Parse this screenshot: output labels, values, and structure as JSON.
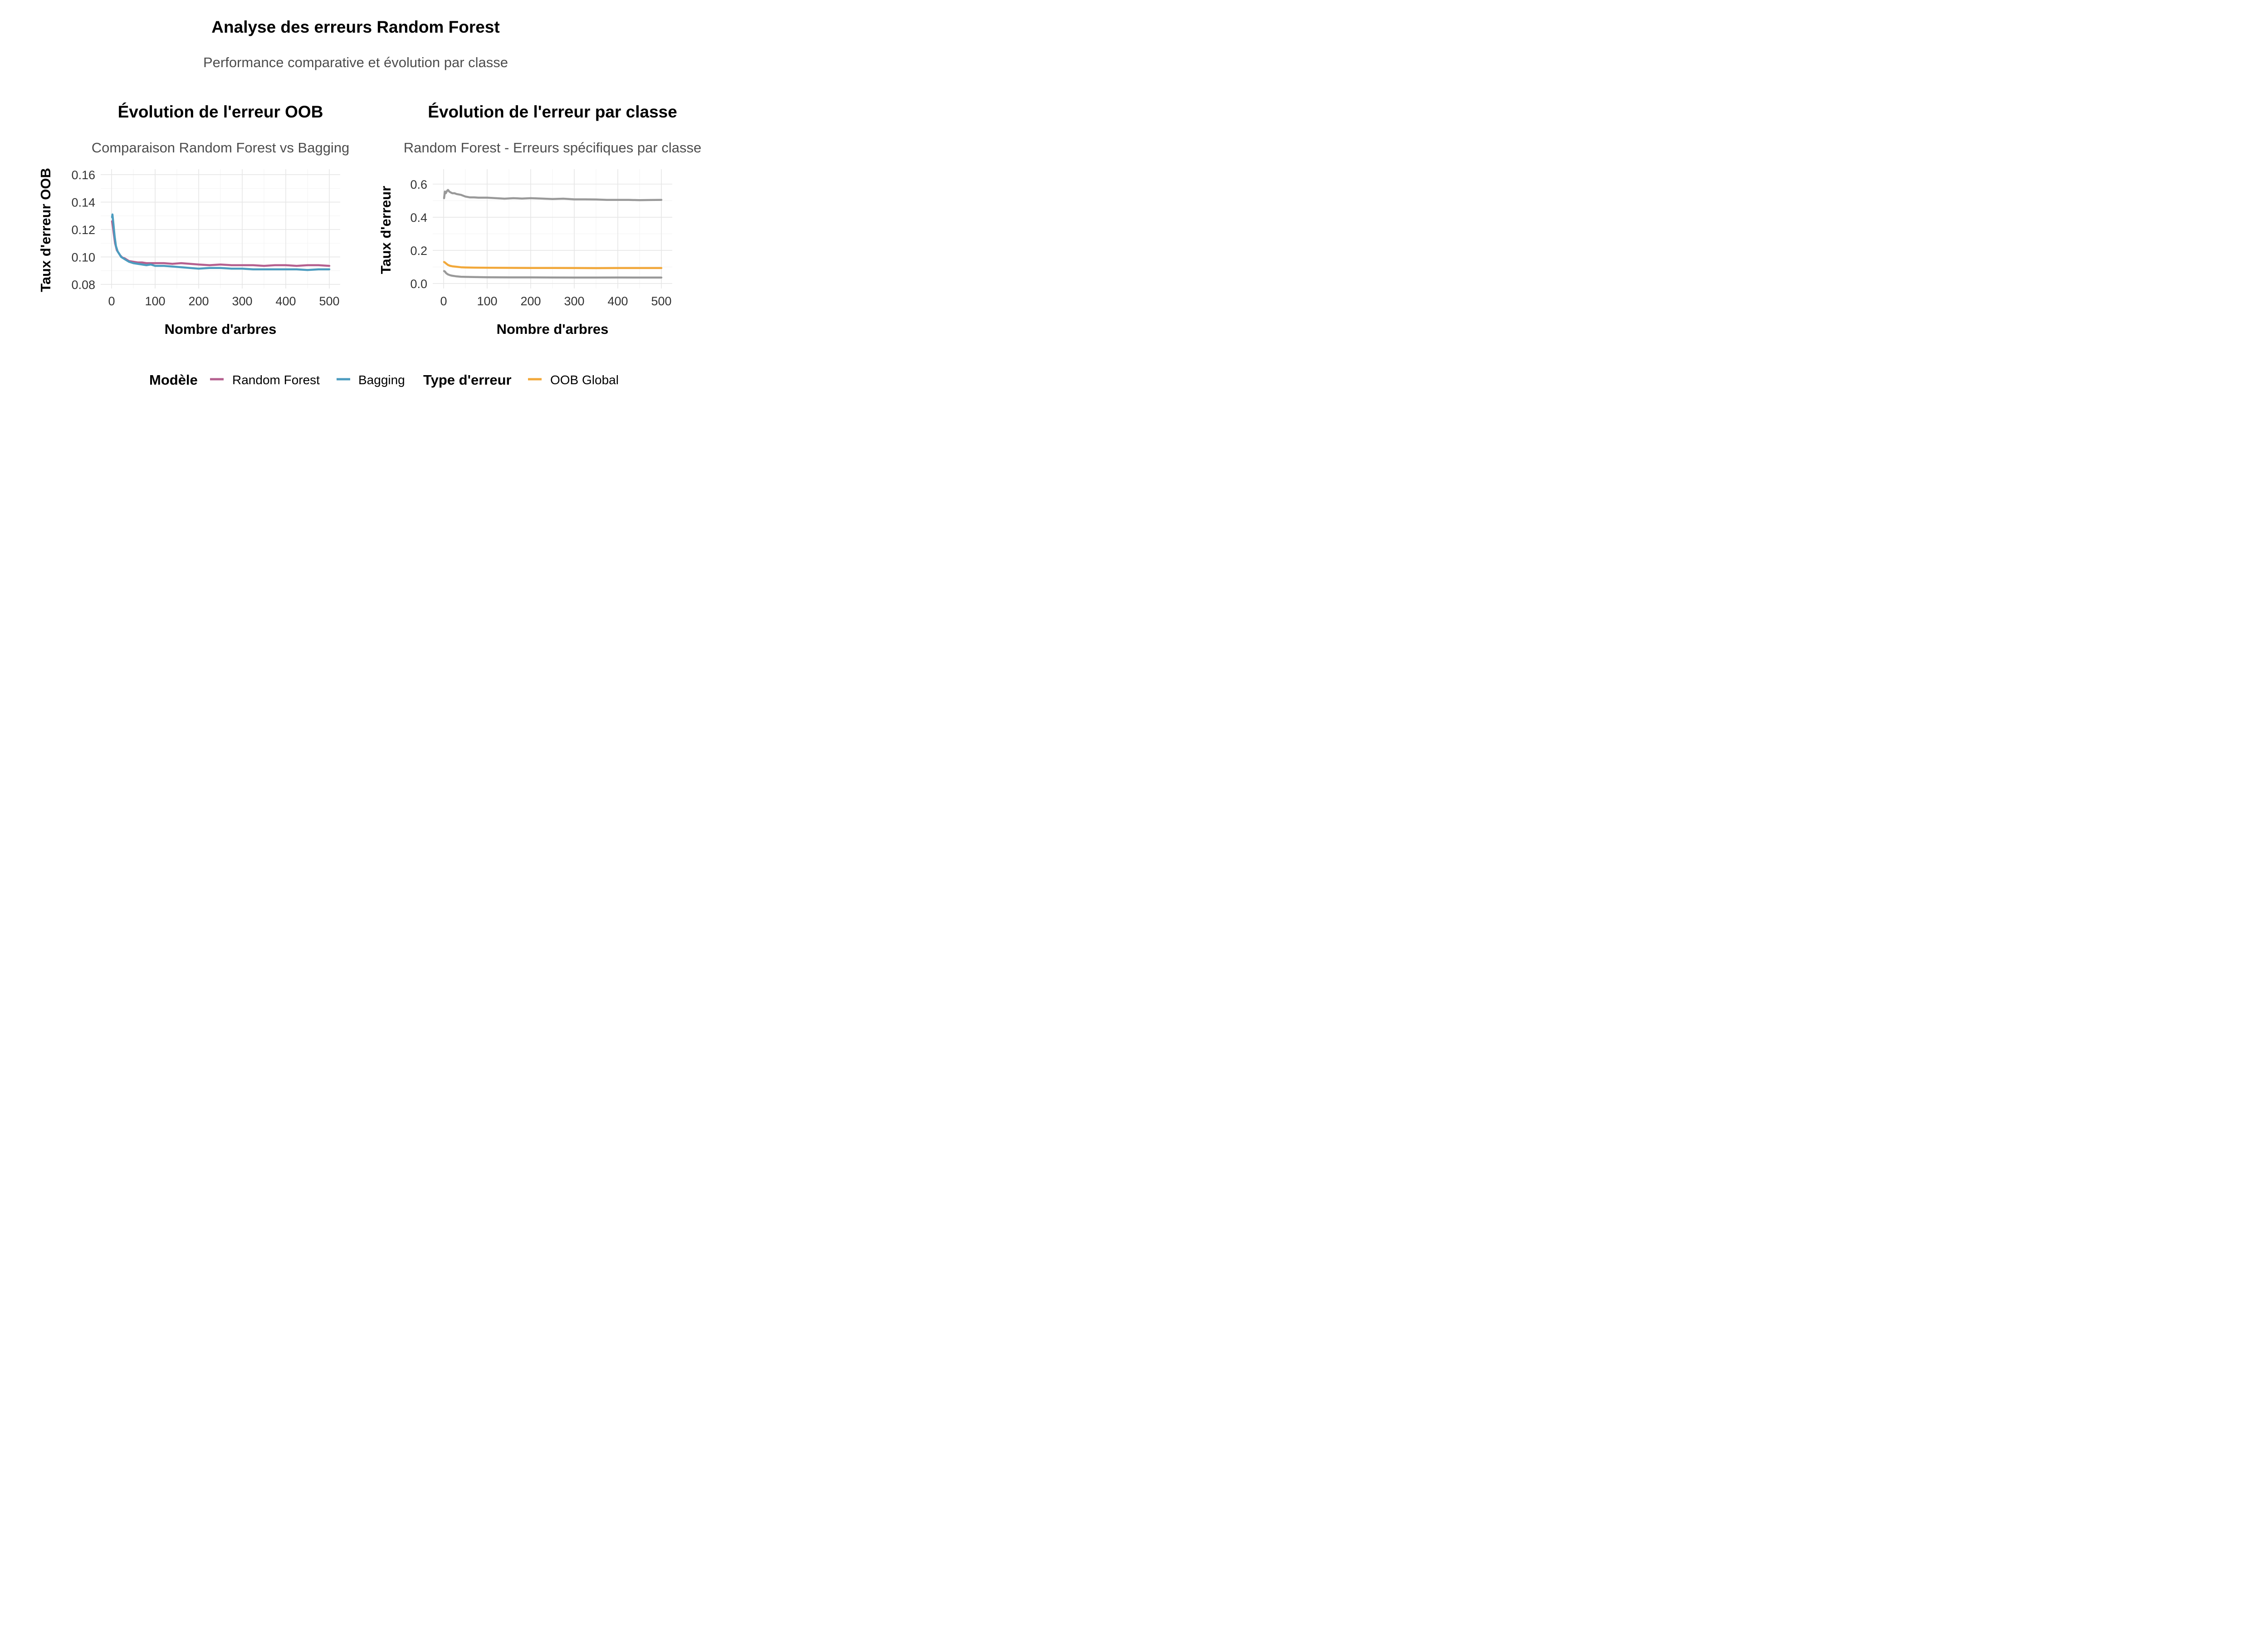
{
  "title": "Analyse des erreurs Random Forest",
  "subtitle": "Performance comparative et évolution par classe",
  "colors": {
    "random_forest": "#b5608f",
    "bagging": "#4c9cbf",
    "oob_global": "#f2a83a",
    "class_error": "#999999"
  },
  "chart_data": [
    {
      "type": "line",
      "title": "Évolution de l'erreur OOB",
      "subtitle": "Comparaison Random Forest vs Bagging",
      "xlabel": "Nombre d'arbres",
      "ylabel": "Taux d'erreur OOB",
      "xlim": [
        0,
        500
      ],
      "ylim": [
        0.077,
        0.164
      ],
      "x_ticks": [
        0,
        100,
        200,
        300,
        400,
        500
      ],
      "x_tick_labels": [
        "0",
        "100",
        "200",
        "300",
        "400",
        "500"
      ],
      "y_ticks": [
        0.08,
        0.1,
        0.12,
        0.14,
        0.16
      ],
      "y_tick_labels": [
        "0.08",
        "0.10",
        "0.12",
        "0.14",
        "0.16"
      ],
      "grid": true,
      "series": [
        {
          "name": "Random Forest",
          "color": "#b5608f",
          "x": [
            1,
            3,
            5,
            8,
            12,
            16,
            20,
            25,
            30,
            40,
            50,
            60,
            70,
            80,
            90,
            100,
            120,
            140,
            160,
            180,
            200,
            225,
            250,
            275,
            300,
            325,
            350,
            375,
            400,
            425,
            450,
            475,
            500
          ],
          "y": [
            0.126,
            0.122,
            0.117,
            0.11,
            0.105,
            0.103,
            0.101,
            0.0995,
            0.099,
            0.097,
            0.0965,
            0.096,
            0.096,
            0.0955,
            0.0955,
            0.0955,
            0.0955,
            0.095,
            0.0955,
            0.095,
            0.0945,
            0.094,
            0.0945,
            0.094,
            0.094,
            0.094,
            0.0935,
            0.094,
            0.094,
            0.0935,
            0.094,
            0.094,
            0.0935
          ]
        },
        {
          "name": "Bagging",
          "color": "#4c9cbf",
          "x": [
            1,
            2,
            4,
            7,
            10,
            14,
            18,
            22,
            27,
            32,
            40,
            50,
            60,
            70,
            80,
            90,
            100,
            120,
            140,
            160,
            180,
            200,
            225,
            250,
            275,
            300,
            325,
            350,
            375,
            400,
            425,
            450,
            475,
            500
          ],
          "y": [
            0.129,
            0.131,
            0.125,
            0.115,
            0.108,
            0.104,
            0.102,
            0.1,
            0.099,
            0.098,
            0.0965,
            0.0955,
            0.095,
            0.0945,
            0.094,
            0.0945,
            0.0935,
            0.0935,
            0.093,
            0.0925,
            0.092,
            0.0915,
            0.092,
            0.092,
            0.0915,
            0.0915,
            0.091,
            0.091,
            0.091,
            0.091,
            0.091,
            0.0905,
            0.091,
            0.091
          ]
        }
      ]
    },
    {
      "type": "line",
      "title": "Évolution de l'erreur par classe",
      "subtitle": "Random Forest - Erreurs spécifiques par classe",
      "xlabel": "Nombre d'arbres",
      "ylabel": "Taux d'erreur",
      "xlim": [
        0,
        500
      ],
      "ylim": [
        0,
        0.6
      ],
      "x_ticks": [
        0,
        100,
        200,
        300,
        400,
        500
      ],
      "x_tick_labels": [
        "0",
        "100",
        "200",
        "300",
        "400",
        "500"
      ],
      "y_ticks": [
        0.0,
        0.2,
        0.4,
        0.6
      ],
      "y_tick_labels": [
        "0.0",
        "0.2",
        "0.4",
        "0.6"
      ],
      "grid": true,
      "series": [
        {
          "color": "#999999",
          "x": [
            1,
            3,
            5,
            8,
            10,
            13,
            16,
            20,
            25,
            30,
            40,
            50,
            60,
            70,
            80,
            100,
            120,
            140,
            160,
            180,
            200,
            225,
            250,
            275,
            300,
            325,
            350,
            375,
            400,
            425,
            450,
            475,
            500
          ],
          "y": [
            0.515,
            0.555,
            0.545,
            0.56,
            0.565,
            0.555,
            0.55,
            0.545,
            0.545,
            0.54,
            0.535,
            0.525,
            0.52,
            0.52,
            0.518,
            0.518,
            0.515,
            0.512,
            0.515,
            0.513,
            0.515,
            0.513,
            0.51,
            0.512,
            0.508,
            0.508,
            0.507,
            0.505,
            0.505,
            0.505,
            0.503,
            0.504,
            0.505
          ]
        },
        {
          "name": "OOB Global",
          "color": "#f2a83a",
          "x": [
            1,
            3,
            6,
            10,
            15,
            20,
            30,
            40,
            50,
            70,
            100,
            150,
            200,
            250,
            300,
            350,
            400,
            450,
            500
          ],
          "y": [
            0.13,
            0.127,
            0.12,
            0.112,
            0.107,
            0.104,
            0.101,
            0.098,
            0.097,
            0.096,
            0.095,
            0.0945,
            0.094,
            0.094,
            0.0935,
            0.093,
            0.0935,
            0.0935,
            0.0935
          ]
        },
        {
          "color": "#999999",
          "x": [
            1,
            3,
            6,
            10,
            15,
            20,
            30,
            40,
            50,
            70,
            100,
            150,
            200,
            250,
            300,
            350,
            400,
            450,
            500
          ],
          "y": [
            0.075,
            0.072,
            0.062,
            0.055,
            0.05,
            0.047,
            0.043,
            0.041,
            0.04,
            0.039,
            0.038,
            0.037,
            0.037,
            0.0365,
            0.036,
            0.036,
            0.0365,
            0.036,
            0.036
          ]
        }
      ]
    }
  ],
  "legend": {
    "groups": [
      {
        "title": "Modèle",
        "entries": [
          {
            "label": "Random Forest",
            "color": "#b5608f"
          },
          {
            "label": "Bagging",
            "color": "#4c9cbf"
          }
        ]
      },
      {
        "title": "Type d'erreur",
        "entries": [
          {
            "label": "OOB Global",
            "color": "#f2a83a"
          }
        ]
      }
    ]
  }
}
